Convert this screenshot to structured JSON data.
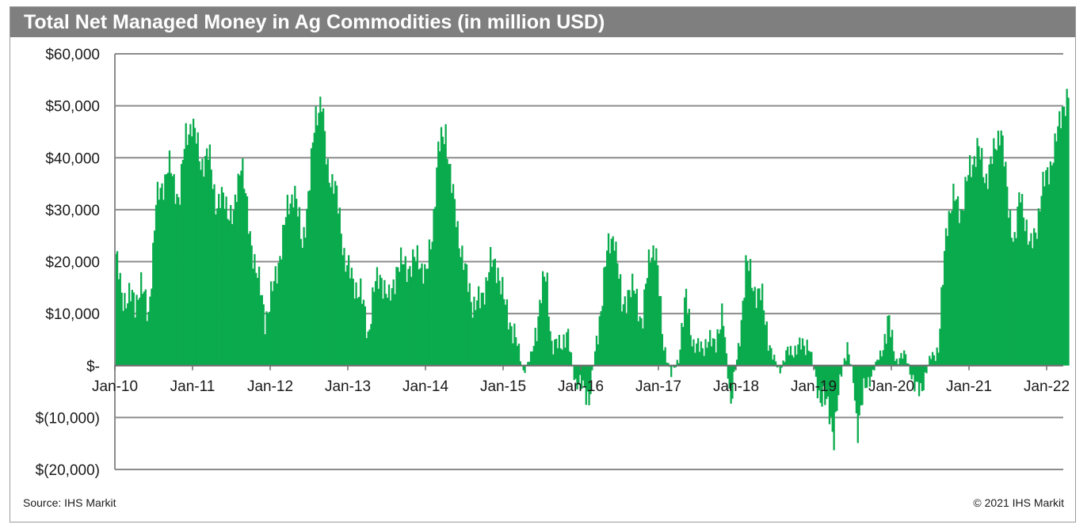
{
  "colors": {
    "series": "#0aab4d",
    "grid": "#8c8c8c",
    "title_bg": "#7f7f7f"
  },
  "chart_data": {
    "type": "bar",
    "title": "Total Net Managed Money in Ag Commodities (in million USD)",
    "xlabel": "",
    "ylabel": "",
    "ylim": [
      -20000,
      60000
    ],
    "y_ticks": [
      {
        "value": 60000,
        "label": "$60,000"
      },
      {
        "value": 50000,
        "label": "$50,000"
      },
      {
        "value": 40000,
        "label": "$40,000"
      },
      {
        "value": 30000,
        "label": "$30,000"
      },
      {
        "value": 20000,
        "label": "$20,000"
      },
      {
        "value": 10000,
        "label": "$10,000"
      },
      {
        "value": 0,
        "label": "$-"
      },
      {
        "value": -10000,
        "label": "$(10,000)"
      },
      {
        "value": -20000,
        "label": "$(20,000)"
      }
    ],
    "x_ticks": [
      {
        "year": 2010,
        "label": "Jan-10"
      },
      {
        "year": 2011,
        "label": "Jan-11"
      },
      {
        "year": 2012,
        "label": "Jan-12"
      },
      {
        "year": 2013,
        "label": "Jan-13"
      },
      {
        "year": 2014,
        "label": "Jan-14"
      },
      {
        "year": 2015,
        "label": "Jan-15"
      },
      {
        "year": 2016,
        "label": "Jan-16"
      },
      {
        "year": 2017,
        "label": "Jan-17"
      },
      {
        "year": 2018,
        "label": "Jan-18"
      },
      {
        "year": 2019,
        "label": "Jan-19"
      },
      {
        "year": 2020,
        "label": "Jan-20"
      },
      {
        "year": 2021,
        "label": "Jan-21"
      },
      {
        "year": 2022,
        "label": "Jan-22"
      }
    ],
    "x_range": [
      2010.0,
      2022.3
    ],
    "series": [
      {
        "name": "Total Net Managed Money",
        "weekly": true,
        "keypoints": [
          [
            2010.0,
            21500
          ],
          [
            2010.08,
            13000
          ],
          [
            2010.18,
            13500
          ],
          [
            2010.25,
            11500
          ],
          [
            2010.32,
            16500
          ],
          [
            2010.42,
            9000
          ],
          [
            2010.52,
            31000
          ],
          [
            2010.68,
            38500
          ],
          [
            2010.82,
            32000
          ],
          [
            2010.9,
            44000
          ],
          [
            2010.98,
            47000
          ],
          [
            2011.1,
            39000
          ],
          [
            2011.2,
            40500
          ],
          [
            2011.3,
            31000
          ],
          [
            2011.4,
            32000
          ],
          [
            2011.52,
            28000
          ],
          [
            2011.62,
            41000
          ],
          [
            2011.72,
            25000
          ],
          [
            2011.8,
            20000
          ],
          [
            2011.92,
            9000
          ],
          [
            2012.05,
            16000
          ],
          [
            2012.2,
            29000
          ],
          [
            2012.3,
            34500
          ],
          [
            2012.4,
            23000
          ],
          [
            2012.5,
            35000
          ],
          [
            2012.57,
            48000
          ],
          [
            2012.65,
            51500
          ],
          [
            2012.72,
            38000
          ],
          [
            2012.82,
            35000
          ],
          [
            2012.95,
            21000
          ],
          [
            2013.05,
            16000
          ],
          [
            2013.15,
            14500
          ],
          [
            2013.25,
            6000
          ],
          [
            2013.32,
            14500
          ],
          [
            2013.42,
            17500
          ],
          [
            2013.52,
            12000
          ],
          [
            2013.62,
            19000
          ],
          [
            2013.72,
            19500
          ],
          [
            2013.8,
            19000
          ],
          [
            2013.9,
            21000
          ],
          [
            2014.0,
            17000
          ],
          [
            2014.08,
            26000
          ],
          [
            2014.15,
            41000
          ],
          [
            2014.25,
            45500
          ],
          [
            2014.32,
            35000
          ],
          [
            2014.42,
            25000
          ],
          [
            2014.5,
            18000
          ],
          [
            2014.6,
            12000
          ],
          [
            2014.7,
            12000
          ],
          [
            2014.82,
            19500
          ],
          [
            2014.92,
            19000
          ],
          [
            2015.02,
            11000
          ],
          [
            2015.12,
            7000
          ],
          [
            2015.25,
            -1000
          ],
          [
            2015.35,
            1500
          ],
          [
            2015.5,
            15000
          ],
          [
            2015.55,
            18000
          ],
          [
            2015.62,
            3000
          ],
          [
            2015.75,
            5000
          ],
          [
            2015.82,
            5500
          ],
          [
            2015.92,
            -3000
          ],
          [
            2016.0,
            -4000
          ],
          [
            2016.1,
            -6000
          ],
          [
            2016.2,
            5000
          ],
          [
            2016.32,
            21000
          ],
          [
            2016.42,
            26000
          ],
          [
            2016.52,
            11000
          ],
          [
            2016.6,
            14500
          ],
          [
            2016.7,
            14000
          ],
          [
            2016.78,
            8000
          ],
          [
            2016.88,
            22000
          ],
          [
            2016.95,
            23000
          ],
          [
            2017.05,
            5000
          ],
          [
            2017.15,
            -2000
          ],
          [
            2017.25,
            1500
          ],
          [
            2017.35,
            13500
          ],
          [
            2017.45,
            3000
          ],
          [
            2017.55,
            4000
          ],
          [
            2017.7,
            4500
          ],
          [
            2017.82,
            9000
          ],
          [
            2017.92,
            -7000
          ],
          [
            2018.02,
            3000
          ],
          [
            2018.12,
            20000
          ],
          [
            2018.22,
            15000
          ],
          [
            2018.32,
            13000
          ],
          [
            2018.45,
            2000
          ],
          [
            2018.55,
            -1000
          ],
          [
            2018.65,
            2500
          ],
          [
            2018.8,
            3500
          ],
          [
            2018.92,
            4500
          ],
          [
            2019.05,
            -5000
          ],
          [
            2019.2,
            -9000
          ],
          [
            2019.25,
            -13500
          ],
          [
            2019.35,
            -1000
          ],
          [
            2019.42,
            4000
          ],
          [
            2019.5,
            -3000
          ],
          [
            2019.55,
            -12000
          ],
          [
            2019.62,
            -6000
          ],
          [
            2019.75,
            -1000
          ],
          [
            2019.85,
            2000
          ],
          [
            2019.95,
            8500
          ],
          [
            2020.05,
            1000
          ],
          [
            2020.18,
            2000
          ],
          [
            2020.3,
            -5000
          ],
          [
            2020.4,
            -3500
          ],
          [
            2020.5,
            2000
          ],
          [
            2020.6,
            3000
          ],
          [
            2020.7,
            28000
          ],
          [
            2020.8,
            32000
          ],
          [
            2020.9,
            30000
          ],
          [
            2021.0,
            38000
          ],
          [
            2021.1,
            42000
          ],
          [
            2021.2,
            36000
          ],
          [
            2021.3,
            40000
          ],
          [
            2021.4,
            46500
          ],
          [
            2021.5,
            30000
          ],
          [
            2021.58,
            24000
          ],
          [
            2021.65,
            33000
          ],
          [
            2021.72,
            28000
          ],
          [
            2021.78,
            22000
          ],
          [
            2021.85,
            26000
          ],
          [
            2021.92,
            33000
          ],
          [
            2022.0,
            37000
          ],
          [
            2022.1,
            42000
          ],
          [
            2022.2,
            50500
          ],
          [
            2022.28,
            51500
          ]
        ]
      }
    ]
  },
  "footer": {
    "source": "Source: IHS Markit",
    "copyright": "© 2021 IHS Markit"
  }
}
